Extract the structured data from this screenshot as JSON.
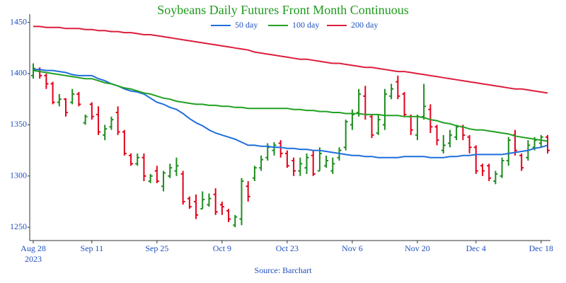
{
  "chart_data": {
    "type": "ohlc",
    "title": "Soybeans Daily Futures Front Month Continuous",
    "source": "Source: Barchart",
    "x": [
      "2023-08-28",
      "2023-08-29",
      "2023-08-30",
      "2023-08-31",
      "2023-09-01",
      "2023-09-05",
      "2023-09-06",
      "2023-09-07",
      "2023-09-08",
      "2023-09-11",
      "2023-09-12",
      "2023-09-13",
      "2023-09-14",
      "2023-09-15",
      "2023-09-18",
      "2023-09-19",
      "2023-09-20",
      "2023-09-21",
      "2023-09-22",
      "2023-09-25",
      "2023-09-26",
      "2023-09-27",
      "2023-09-28",
      "2023-09-29",
      "2023-10-02",
      "2023-10-03",
      "2023-10-04",
      "2023-10-05",
      "2023-10-06",
      "2023-10-09",
      "2023-10-10",
      "2023-10-11",
      "2023-10-12",
      "2023-10-13",
      "2023-10-16",
      "2023-10-17",
      "2023-10-18",
      "2023-10-19",
      "2023-10-20",
      "2023-10-23",
      "2023-10-24",
      "2023-10-25",
      "2023-10-26",
      "2023-10-27",
      "2023-10-30",
      "2023-10-31",
      "2023-11-01",
      "2023-11-02",
      "2023-11-03",
      "2023-11-06",
      "2023-11-07",
      "2023-11-08",
      "2023-11-09",
      "2023-11-10",
      "2023-11-13",
      "2023-11-14",
      "2023-11-15",
      "2023-11-16",
      "2023-11-17",
      "2023-11-20",
      "2023-11-21",
      "2023-11-22",
      "2023-11-24",
      "2023-11-27",
      "2023-11-28",
      "2023-11-29",
      "2023-11-30",
      "2023-12-01",
      "2023-12-04",
      "2023-12-05",
      "2023-12-06",
      "2023-12-07",
      "2023-12-08",
      "2023-12-11",
      "2023-12-12",
      "2023-12-13",
      "2023-12-14",
      "2023-12-15",
      "2023-12-18",
      "2023-12-19"
    ],
    "open": [
      1398,
      1404,
      1398,
      1390,
      1372,
      1375,
      1372,
      1380,
      1352,
      1370,
      1360,
      1340,
      1348,
      1362,
      1343,
      1320,
      1312,
      1318,
      1295,
      1305,
      1290,
      1300,
      1305,
      1302,
      1278,
      1275,
      1268,
      1272,
      1282,
      1272,
      1266,
      1252,
      1258,
      1290,
      1298,
      1308,
      1318,
      1325,
      1332,
      1322,
      1315,
      1305,
      1308,
      1320,
      1305,
      1310,
      1305,
      1318,
      1328,
      1350,
      1362,
      1378,
      1358,
      1342,
      1350,
      1378,
      1392,
      1380,
      1358,
      1340,
      1358,
      1365,
      1348,
      1325,
      1332,
      1338,
      1348,
      1338,
      1328,
      1310,
      1310,
      1295,
      1300,
      1315,
      1340,
      1320,
      1318,
      1328,
      1332,
      1338
    ],
    "high": [
      1410,
      1406,
      1400,
      1392,
      1380,
      1376,
      1385,
      1382,
      1360,
      1372,
      1368,
      1350,
      1358,
      1368,
      1345,
      1322,
      1322,
      1322,
      1302,
      1310,
      1305,
      1312,
      1318,
      1305,
      1280,
      1282,
      1285,
      1283,
      1288,
      1275,
      1268,
      1262,
      1298,
      1295,
      1310,
      1320,
      1332,
      1333,
      1335,
      1325,
      1318,
      1318,
      1322,
      1325,
      1328,
      1320,
      1318,
      1328,
      1355,
      1365,
      1385,
      1388,
      1360,
      1360,
      1385,
      1390,
      1398,
      1382,
      1360,
      1360,
      1390,
      1370,
      1350,
      1340,
      1345,
      1350,
      1350,
      1340,
      1330,
      1312,
      1312,
      1305,
      1318,
      1338,
      1345,
      1322,
      1335,
      1338,
      1340,
      1340
    ],
    "low": [
      1395,
      1395,
      1385,
      1370,
      1368,
      1358,
      1370,
      1368,
      1350,
      1355,
      1340,
      1335,
      1345,
      1340,
      1320,
      1310,
      1310,
      1295,
      1293,
      1293,
      1285,
      1298,
      1300,
      1272,
      1268,
      1258,
      1268,
      1270,
      1262,
      1262,
      1255,
      1250,
      1252,
      1275,
      1295,
      1305,
      1315,
      1320,
      1318,
      1308,
      1300,
      1300,
      1302,
      1300,
      1305,
      1308,
      1302,
      1315,
      1325,
      1345,
      1358,
      1355,
      1337,
      1340,
      1345,
      1375,
      1375,
      1358,
      1340,
      1335,
      1355,
      1342,
      1330,
      1322,
      1328,
      1335,
      1335,
      1322,
      1302,
      1300,
      1295,
      1292,
      1298,
      1310,
      1320,
      1305,
      1315,
      1325,
      1328,
      1322
    ],
    "close": [
      1405,
      1398,
      1390,
      1372,
      1375,
      1362,
      1380,
      1370,
      1358,
      1358,
      1343,
      1346,
      1355,
      1343,
      1322,
      1312,
      1318,
      1300,
      1300,
      1295,
      1303,
      1308,
      1310,
      1275,
      1270,
      1262,
      1277,
      1278,
      1265,
      1270,
      1258,
      1260,
      1295,
      1280,
      1308,
      1316,
      1328,
      1330,
      1322,
      1310,
      1305,
      1312,
      1318,
      1302,
      1322,
      1315,
      1312,
      1325,
      1353,
      1360,
      1380,
      1360,
      1340,
      1355,
      1380,
      1385,
      1378,
      1360,
      1345,
      1358,
      1368,
      1348,
      1335,
      1330,
      1340,
      1348,
      1340,
      1328,
      1305,
      1305,
      1298,
      1302,
      1315,
      1335,
      1325,
      1308,
      1330,
      1335,
      1338,
      1325
    ],
    "up_color": "#1e8c1e",
    "down_color": "#e3001b",
    "series": [
      {
        "name": "50 day",
        "color": "#1e6fdc",
        "values": [
          1404,
          1404,
          1403,
          1403,
          1402,
          1401,
          1399,
          1398,
          1398,
          1398,
          1395,
          1393,
          1390,
          1388,
          1385,
          1383,
          1382,
          1380,
          1376,
          1372,
          1370,
          1367,
          1365,
          1361,
          1356,
          1352,
          1349,
          1345,
          1342,
          1340,
          1338,
          1336,
          1333,
          1330,
          1330,
          1329,
          1329,
          1328,
          1328,
          1327,
          1327,
          1326,
          1326,
          1325,
          1325,
          1324,
          1323,
          1322,
          1321,
          1320,
          1320,
          1319,
          1319,
          1318,
          1318,
          1318,
          1318,
          1319,
          1319,
          1319,
          1319,
          1318,
          1318,
          1318,
          1319,
          1319,
          1320,
          1320,
          1321,
          1321,
          1321,
          1321,
          1321,
          1322,
          1323,
          1324,
          1325,
          1327,
          1328,
          1330
        ]
      },
      {
        "name": "100 day",
        "color": "#22a022",
        "values": [
          1403,
          1402,
          1401,
          1400,
          1399,
          1398,
          1397,
          1396,
          1395,
          1395,
          1393,
          1391,
          1390,
          1388,
          1386,
          1385,
          1383,
          1381,
          1380,
          1378,
          1376,
          1375,
          1373,
          1372,
          1371,
          1370,
          1370,
          1369,
          1369,
          1368,
          1368,
          1367,
          1367,
          1366,
          1366,
          1366,
          1366,
          1366,
          1366,
          1366,
          1365,
          1365,
          1364,
          1364,
          1363,
          1363,
          1362,
          1362,
          1361,
          1361,
          1361,
          1360,
          1360,
          1360,
          1359,
          1359,
          1359,
          1358,
          1358,
          1358,
          1357,
          1355,
          1354,
          1352,
          1351,
          1349,
          1348,
          1346,
          1345,
          1345,
          1344,
          1343,
          1342,
          1341,
          1339,
          1338,
          1337,
          1336,
          1335,
          1334
        ]
      },
      {
        "name": "200 day",
        "color": "#dc1e3c",
        "values": [
          1446,
          1446,
          1445,
          1445,
          1445,
          1444,
          1444,
          1444,
          1443,
          1443,
          1442,
          1442,
          1441,
          1441,
          1440,
          1440,
          1439,
          1438,
          1438,
          1437,
          1436,
          1435,
          1434,
          1433,
          1432,
          1431,
          1430,
          1429,
          1428,
          1427,
          1426,
          1425,
          1424,
          1423,
          1421,
          1420,
          1419,
          1418,
          1417,
          1416,
          1415,
          1414,
          1414,
          1413,
          1412,
          1411,
          1410,
          1410,
          1409,
          1408,
          1407,
          1406,
          1406,
          1405,
          1404,
          1403,
          1402,
          1402,
          1401,
          1400,
          1399,
          1398,
          1397,
          1396,
          1395,
          1394,
          1393,
          1392,
          1391,
          1390,
          1389,
          1388,
          1387,
          1386,
          1385,
          1385,
          1384,
          1383,
          1382,
          1381
        ]
      }
    ],
    "ylim": [
      1237,
      1458
    ],
    "yticks": [
      1250,
      1300,
      1350,
      1400,
      1450
    ],
    "xticks": [
      {
        "value": "2023-08-28",
        "label": "Aug 28",
        "sublabel": "2023"
      },
      {
        "value": "2023-09-11",
        "label": "Sep 11"
      },
      {
        "value": "2023-09-25",
        "label": "Sep 25"
      },
      {
        "value": "2023-10-09",
        "label": "Oct 9"
      },
      {
        "value": "2023-10-23",
        "label": "Oct 23"
      },
      {
        "value": "2023-11-06",
        "label": "Nov 6"
      },
      {
        "value": "2023-11-20",
        "label": "Nov 20"
      },
      {
        "value": "2023-12-04",
        "label": "Dec 4"
      },
      {
        "value": "2023-12-18",
        "label": "Dec 18"
      }
    ]
  }
}
